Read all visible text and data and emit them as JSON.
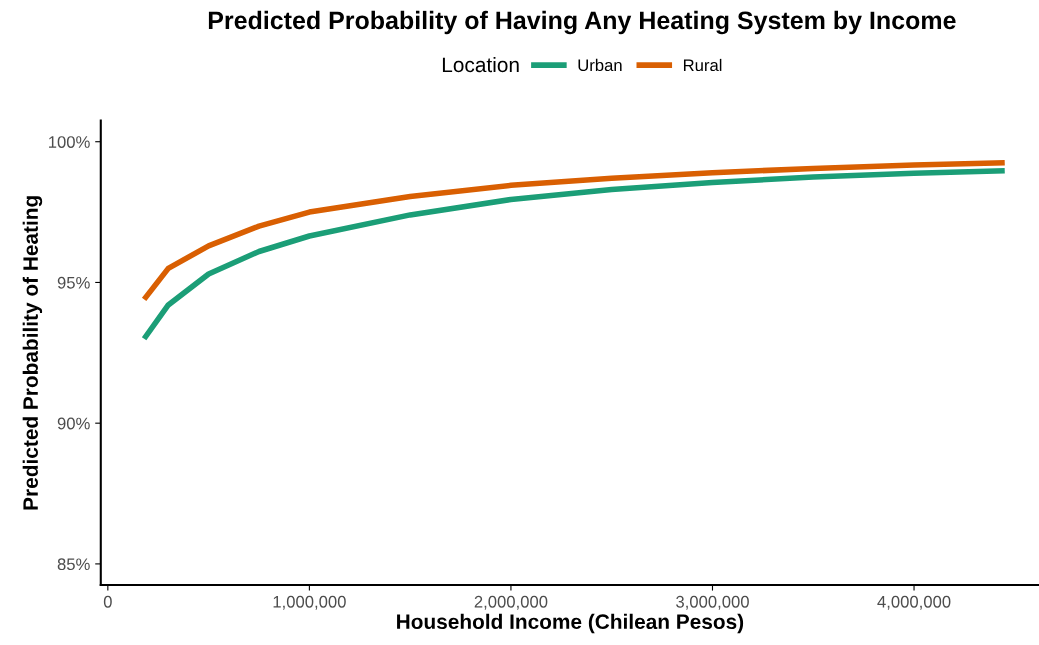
{
  "chart_data": {
    "type": "line",
    "title": "Predicted Probability of Having Any Heating System by Income",
    "xlabel": "Household Income (Chilean Pesos)",
    "ylabel": "Predicted Probability of Heating",
    "legend_title": "Location",
    "legend": "top",
    "grid": false,
    "marker": "none",
    "line_style": "solid",
    "x": [
      180000,
      300000,
      500000,
      750000,
      1000000,
      1500000,
      2000000,
      2500000,
      3000000,
      3500000,
      4000000,
      4450000
    ],
    "series": [
      {
        "name": "Urban",
        "color": "#1b9e77",
        "values": [
          93.0,
          94.2,
          95.3,
          96.1,
          96.65,
          97.4,
          97.95,
          98.3,
          98.55,
          98.75,
          98.88,
          98.97
        ]
      },
      {
        "name": "Rural",
        "color": "#d95f02",
        "values": [
          94.4,
          95.5,
          96.3,
          97.0,
          97.5,
          98.05,
          98.45,
          98.7,
          98.9,
          99.05,
          99.17,
          99.25
        ]
      }
    ],
    "xlim": [
      -35000,
      4620000
    ],
    "ylim": [
      84.25,
      100.75
    ],
    "xticks": [
      {
        "value": 0,
        "label": "0"
      },
      {
        "value": 1000000,
        "label": "1,000,000"
      },
      {
        "value": 2000000,
        "label": "2,000,000"
      },
      {
        "value": 3000000,
        "label": "3,000,000"
      },
      {
        "value": 4000000,
        "label": "4,000,000"
      }
    ],
    "yticks": [
      {
        "value": 85,
        "label": "85%"
      },
      {
        "value": 90,
        "label": "90%"
      },
      {
        "value": 95,
        "label": "95%"
      },
      {
        "value": 100,
        "label": "100%"
      }
    ]
  }
}
